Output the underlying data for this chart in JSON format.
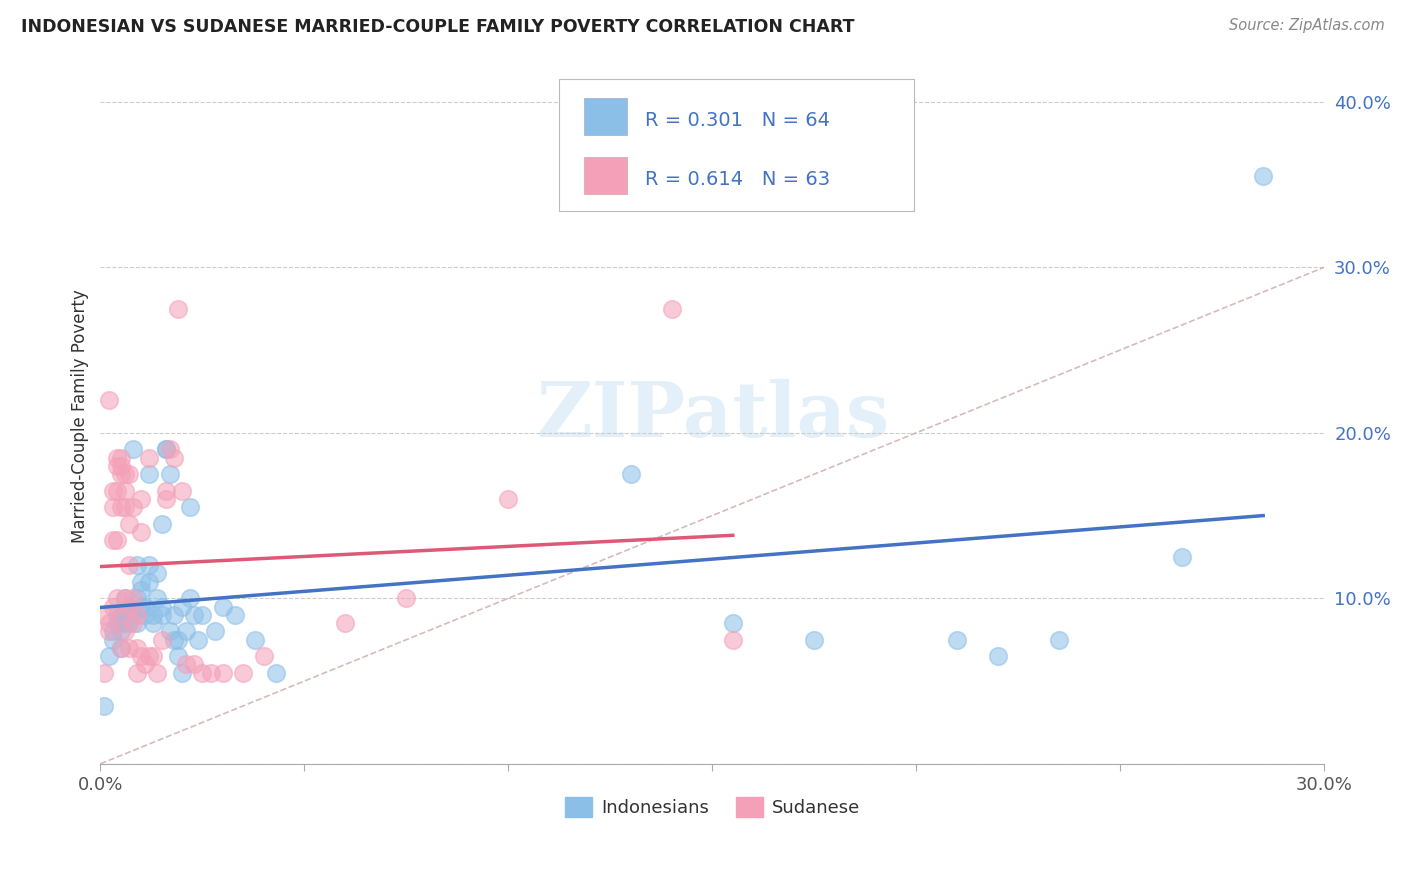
{
  "title": "INDONESIAN VS SUDANESE MARRIED-COUPLE FAMILY POVERTY CORRELATION CHART",
  "source": "Source: ZipAtlas.com",
  "ylabel": "Married-Couple Family Poverty",
  "xlim": [
    0.0,
    0.3
  ],
  "ylim": [
    0.0,
    0.42
  ],
  "xticks": [
    0.0,
    0.05,
    0.1,
    0.15,
    0.2,
    0.25,
    0.3
  ],
  "xticklabels": [
    "0.0%",
    "",
    "",
    "",
    "",
    "",
    "30.0%"
  ],
  "yticks": [
    0.0,
    0.1,
    0.2,
    0.3,
    0.4
  ],
  "yticklabels": [
    "",
    "10.0%",
    "20.0%",
    "30.0%",
    "40.0%"
  ],
  "indonesian_color": "#8BBFE8",
  "sudanese_color": "#F4A0B8",
  "indonesian_line_color": "#4472C4",
  "sudanese_line_color": "#E05878",
  "indonesian_R": 0.301,
  "indonesian_N": 64,
  "sudanese_R": 0.614,
  "sudanese_N": 63,
  "indonesian_scatter": [
    [
      0.001,
      0.035
    ],
    [
      0.002,
      0.065
    ],
    [
      0.003,
      0.08
    ],
    [
      0.003,
      0.075
    ],
    [
      0.004,
      0.09
    ],
    [
      0.004,
      0.085
    ],
    [
      0.005,
      0.08
    ],
    [
      0.005,
      0.09
    ],
    [
      0.005,
      0.07
    ],
    [
      0.006,
      0.085
    ],
    [
      0.006,
      0.09
    ],
    [
      0.006,
      0.1
    ],
    [
      0.007,
      0.09
    ],
    [
      0.007,
      0.095
    ],
    [
      0.007,
      0.085
    ],
    [
      0.008,
      0.09
    ],
    [
      0.008,
      0.19
    ],
    [
      0.009,
      0.12
    ],
    [
      0.009,
      0.1
    ],
    [
      0.009,
      0.085
    ],
    [
      0.01,
      0.11
    ],
    [
      0.01,
      0.105
    ],
    [
      0.01,
      0.095
    ],
    [
      0.011,
      0.095
    ],
    [
      0.011,
      0.09
    ],
    [
      0.012,
      0.175
    ],
    [
      0.012,
      0.11
    ],
    [
      0.012,
      0.12
    ],
    [
      0.013,
      0.09
    ],
    [
      0.013,
      0.085
    ],
    [
      0.014,
      0.115
    ],
    [
      0.014,
      0.1
    ],
    [
      0.015,
      0.145
    ],
    [
      0.015,
      0.09
    ],
    [
      0.015,
      0.095
    ],
    [
      0.016,
      0.19
    ],
    [
      0.016,
      0.19
    ],
    [
      0.017,
      0.175
    ],
    [
      0.017,
      0.08
    ],
    [
      0.018,
      0.09
    ],
    [
      0.018,
      0.075
    ],
    [
      0.019,
      0.075
    ],
    [
      0.019,
      0.065
    ],
    [
      0.02,
      0.095
    ],
    [
      0.02,
      0.055
    ],
    [
      0.021,
      0.08
    ],
    [
      0.022,
      0.155
    ],
    [
      0.022,
      0.1
    ],
    [
      0.023,
      0.09
    ],
    [
      0.024,
      0.075
    ],
    [
      0.025,
      0.09
    ],
    [
      0.028,
      0.08
    ],
    [
      0.03,
      0.095
    ],
    [
      0.033,
      0.09
    ],
    [
      0.038,
      0.075
    ],
    [
      0.043,
      0.055
    ],
    [
      0.13,
      0.175
    ],
    [
      0.155,
      0.085
    ],
    [
      0.175,
      0.075
    ],
    [
      0.21,
      0.075
    ],
    [
      0.22,
      0.065
    ],
    [
      0.235,
      0.075
    ],
    [
      0.265,
      0.125
    ],
    [
      0.285,
      0.355
    ]
  ],
  "sudanese_scatter": [
    [
      0.001,
      0.055
    ],
    [
      0.001,
      0.09
    ],
    [
      0.002,
      0.22
    ],
    [
      0.002,
      0.085
    ],
    [
      0.002,
      0.08
    ],
    [
      0.003,
      0.165
    ],
    [
      0.003,
      0.155
    ],
    [
      0.003,
      0.135
    ],
    [
      0.003,
      0.095
    ],
    [
      0.004,
      0.185
    ],
    [
      0.004,
      0.18
    ],
    [
      0.004,
      0.165
    ],
    [
      0.004,
      0.135
    ],
    [
      0.004,
      0.1
    ],
    [
      0.005,
      0.185
    ],
    [
      0.005,
      0.18
    ],
    [
      0.005,
      0.175
    ],
    [
      0.005,
      0.155
    ],
    [
      0.005,
      0.09
    ],
    [
      0.005,
      0.07
    ],
    [
      0.006,
      0.175
    ],
    [
      0.006,
      0.165
    ],
    [
      0.006,
      0.155
    ],
    [
      0.006,
      0.1
    ],
    [
      0.006,
      0.08
    ],
    [
      0.007,
      0.175
    ],
    [
      0.007,
      0.145
    ],
    [
      0.007,
      0.12
    ],
    [
      0.007,
      0.095
    ],
    [
      0.007,
      0.07
    ],
    [
      0.008,
      0.155
    ],
    [
      0.008,
      0.1
    ],
    [
      0.008,
      0.085
    ],
    [
      0.009,
      0.09
    ],
    [
      0.009,
      0.07
    ],
    [
      0.009,
      0.055
    ],
    [
      0.01,
      0.16
    ],
    [
      0.01,
      0.14
    ],
    [
      0.01,
      0.065
    ],
    [
      0.011,
      0.06
    ],
    [
      0.012,
      0.185
    ],
    [
      0.012,
      0.065
    ],
    [
      0.013,
      0.065
    ],
    [
      0.014,
      0.055
    ],
    [
      0.015,
      0.075
    ],
    [
      0.016,
      0.165
    ],
    [
      0.016,
      0.16
    ],
    [
      0.017,
      0.19
    ],
    [
      0.018,
      0.185
    ],
    [
      0.019,
      0.275
    ],
    [
      0.02,
      0.165
    ],
    [
      0.021,
      0.06
    ],
    [
      0.023,
      0.06
    ],
    [
      0.025,
      0.055
    ],
    [
      0.027,
      0.055
    ],
    [
      0.03,
      0.055
    ],
    [
      0.035,
      0.055
    ],
    [
      0.04,
      0.065
    ],
    [
      0.06,
      0.085
    ],
    [
      0.075,
      0.1
    ],
    [
      0.1,
      0.16
    ],
    [
      0.14,
      0.275
    ],
    [
      0.155,
      0.075
    ]
  ]
}
